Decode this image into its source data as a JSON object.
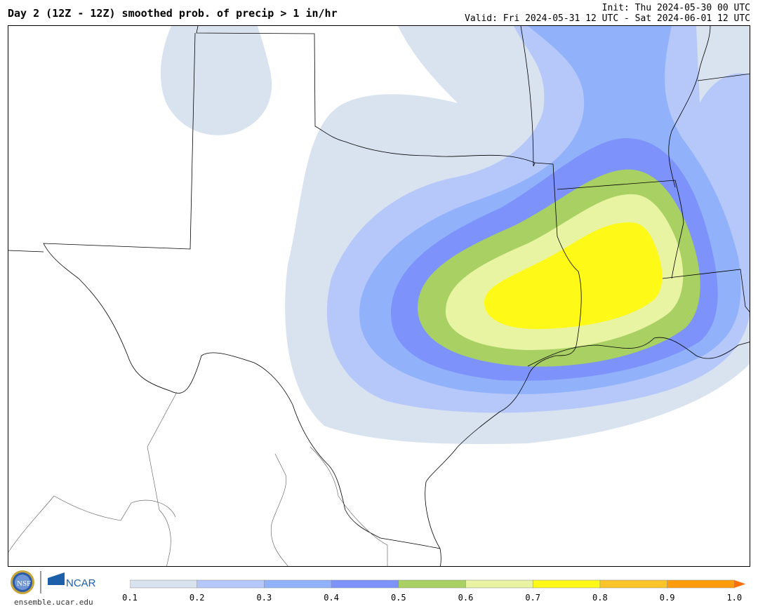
{
  "header": {
    "title": "Day 2 (12Z - 12Z) smoothed prob. of precip > 1 in/hr",
    "init": "Init: Thu 2024-05-30 00 UTC",
    "valid": "Valid: Fri 2024-05-31 12 UTC - Sat 2024-06-01 12 UTC"
  },
  "footer": {
    "site": "ensemble.ucar.edu",
    "logo_text": "NCAR",
    "nsf_text": "NSF"
  },
  "colorbar": {
    "ticks": [
      "0.1",
      "0.2",
      "0.3",
      "0.4",
      "0.5",
      "0.6",
      "0.7",
      "0.8",
      "0.9",
      "1.0"
    ],
    "colors": [
      "#d8e3ef",
      "#b6c8fa",
      "#91b2fb",
      "#7d92fa",
      "#a9d063",
      "#e8f4a2",
      "#fff917",
      "#fcc42b",
      "#ff9c0b"
    ]
  },
  "map": {
    "levels": [
      {
        "threshold": 0.1,
        "color": "#d8e3ef"
      },
      {
        "threshold": 0.2,
        "color": "#b6c8fa"
      },
      {
        "threshold": 0.3,
        "color": "#91b2fb"
      },
      {
        "threshold": 0.4,
        "color": "#7d92fa"
      },
      {
        "threshold": 0.5,
        "color": "#a9d063"
      },
      {
        "threshold": 0.6,
        "color": "#e8f4a2"
      },
      {
        "threshold": 0.7,
        "color": "#fff917"
      }
    ],
    "borders_color": "#000000"
  }
}
